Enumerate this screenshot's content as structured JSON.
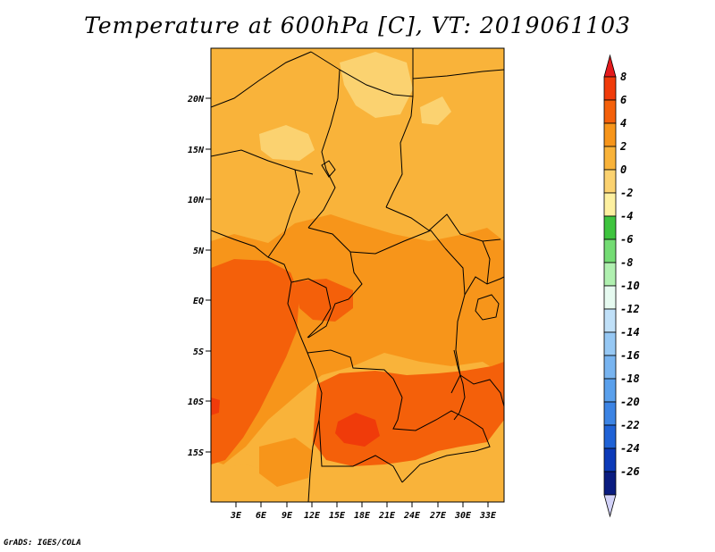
{
  "title": "Temperature at 600hPa [C], VT: 2019061103",
  "credit": "GrADS: IGES/COLA",
  "map": {
    "lat_ticks": [
      "20N",
      "15N",
      "10N",
      "5N",
      "EQ",
      "5S",
      "10S",
      "15S"
    ],
    "lon_ticks": [
      "3E",
      "6E",
      "9E",
      "12E",
      "15E",
      "18E",
      "21E",
      "24E",
      "27E",
      "30E",
      "33E"
    ]
  },
  "colorbar": {
    "labels": [
      "8",
      "6",
      "4",
      "2",
      "0",
      "-2",
      "-4",
      "-6",
      "-8",
      "-10",
      "-12",
      "-14",
      "-16",
      "-18",
      "-20",
      "-22",
      "-24",
      "-26"
    ],
    "colors": [
      "#e41a1c",
      "#f03b0a",
      "#f4600a",
      "#f7951a",
      "#f9b33a",
      "#fbd270",
      "#fdf0a0",
      "#3ec43e",
      "#74dc74",
      "#b0f0b0",
      "#e6faf0",
      "#c0e0f8",
      "#96c8f4",
      "#78b4f0",
      "#5aa0ec",
      "#3c84e4",
      "#1f62d6",
      "#0c3ab8",
      "#0a1c80",
      "#d2d2f8"
    ]
  }
}
